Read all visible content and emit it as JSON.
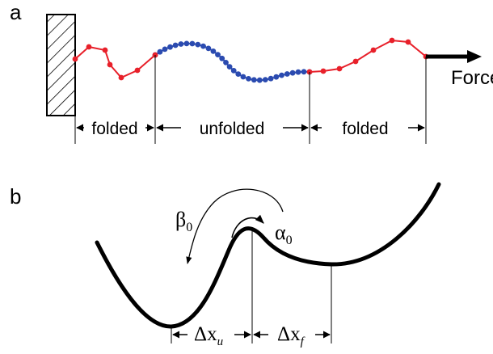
{
  "panel_a": {
    "label": "a",
    "force_label": "Force",
    "segments": [
      {
        "label": "folded",
        "state": "folded"
      },
      {
        "label": "unfolded",
        "state": "unfolded"
      },
      {
        "label": "folded",
        "state": "folded"
      }
    ],
    "colors": {
      "folded": "#e8202a",
      "unfolded": "#2b4bb0",
      "force_arrow": "#000000"
    }
  },
  "panel_b": {
    "label": "b",
    "beta_symbol": "β",
    "beta_sub": "0",
    "alpha_symbol": "α",
    "alpha_sub": "0",
    "dx_u": {
      "symbol": "Δx",
      "sub": "u"
    },
    "dx_f": {
      "symbol": "Δx",
      "sub": "f"
    }
  }
}
